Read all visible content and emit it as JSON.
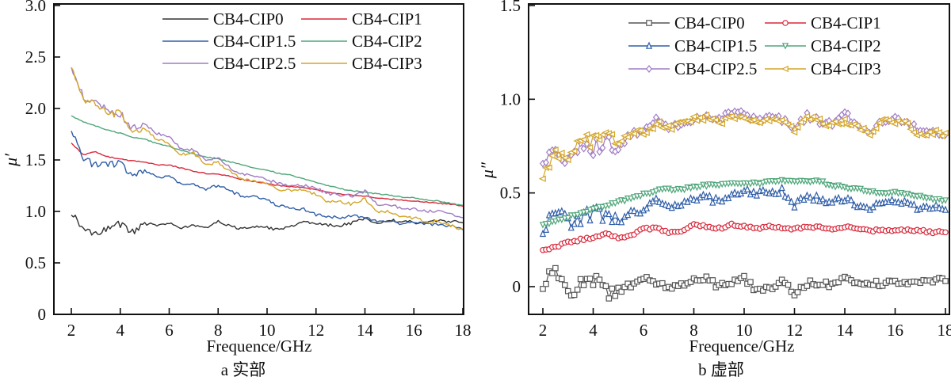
{
  "figure": {
    "panels_caption": [
      "a 实部",
      "b 虚部"
    ]
  },
  "chart_data": [
    {
      "id": "a",
      "type": "line",
      "title": "",
      "caption": "a 实部",
      "xlabel": "Frequence/GHz",
      "ylabel": "μ′",
      "xlim": [
        1.3,
        18.2
      ],
      "ylim": [
        0,
        3.0
      ],
      "xticks": [
        2,
        4,
        6,
        8,
        10,
        12,
        14,
        16,
        18
      ],
      "xtick_labels": [
        "2",
        "4",
        "6",
        "8",
        "10",
        "12",
        "14",
        "16",
        "18"
      ],
      "yticks": [
        0,
        0.5,
        1.0,
        1.5,
        2.0,
        2.5,
        3.0
      ],
      "ytick_labels": [
        "0",
        "0.5",
        "1.0",
        "1.5",
        "2.0",
        "2.5",
        "3.0"
      ],
      "grid": false,
      "legend_position": "top-right",
      "legend_columns": 2,
      "markers": false,
      "x": [
        2,
        2.5,
        3,
        3.5,
        4,
        4.5,
        5,
        5.5,
        6,
        6.5,
        7,
        7.5,
        8,
        8.5,
        9,
        9.5,
        10,
        10.5,
        11,
        11.5,
        12,
        12.5,
        13,
        13.5,
        14,
        14.5,
        15,
        15.5,
        16,
        16.5,
        17,
        17.5,
        18
      ],
      "series": [
        {
          "name": "CB4-CIP0",
          "color": "#333333",
          "values": [
            1.0,
            0.82,
            0.78,
            0.84,
            0.88,
            0.8,
            0.88,
            0.87,
            0.88,
            0.84,
            0.87,
            0.84,
            0.9,
            0.86,
            0.83,
            0.85,
            0.84,
            0.82,
            0.86,
            0.89,
            0.89,
            0.87,
            0.86,
            0.89,
            0.93,
            0.88,
            0.91,
            0.91,
            0.89,
            0.9,
            0.91,
            0.9,
            0.89
          ]
        },
        {
          "name": "CB4-CIP1",
          "color": "#d8283a",
          "values": [
            1.66,
            1.55,
            1.58,
            1.53,
            1.51,
            1.49,
            1.48,
            1.45,
            1.45,
            1.42,
            1.39,
            1.37,
            1.36,
            1.34,
            1.31,
            1.29,
            1.27,
            1.25,
            1.24,
            1.23,
            1.21,
            1.19,
            1.17,
            1.16,
            1.15,
            1.13,
            1.12,
            1.11,
            1.1,
            1.09,
            1.08,
            1.07,
            1.05
          ]
        },
        {
          "name": "CB4-CIP1.5",
          "color": "#2f5ea8",
          "values": [
            1.78,
            1.5,
            1.45,
            1.45,
            1.47,
            1.33,
            1.4,
            1.33,
            1.34,
            1.26,
            1.27,
            1.22,
            1.25,
            1.2,
            1.14,
            1.14,
            1.11,
            1.05,
            1.04,
            1.02,
            0.97,
            0.95,
            0.94,
            0.96,
            0.94,
            0.91,
            0.91,
            0.88,
            0.89,
            0.88,
            0.87,
            0.86,
            0.82
          ]
        },
        {
          "name": "CB4-CIP2",
          "color": "#4fa67a",
          "values": [
            1.93,
            1.87,
            1.83,
            1.79,
            1.76,
            1.72,
            1.7,
            1.66,
            1.63,
            1.59,
            1.56,
            1.53,
            1.51,
            1.48,
            1.45,
            1.42,
            1.4,
            1.37,
            1.35,
            1.32,
            1.28,
            1.25,
            1.22,
            1.2,
            1.19,
            1.17,
            1.16,
            1.14,
            1.13,
            1.11,
            1.1,
            1.08,
            1.06
          ]
        },
        {
          "name": "CB4-CIP2.5",
          "color": "#a07cc5",
          "values": [
            2.4,
            2.12,
            2.05,
            1.98,
            1.95,
            1.8,
            1.84,
            1.76,
            1.72,
            1.6,
            1.6,
            1.5,
            1.53,
            1.42,
            1.36,
            1.35,
            1.31,
            1.27,
            1.25,
            1.25,
            1.23,
            1.17,
            1.16,
            1.15,
            1.2,
            1.07,
            1.07,
            1.03,
            1.02,
            1.0,
            1.01,
            0.97,
            0.94
          ]
        },
        {
          "name": "CB4-CIP3",
          "color": "#d4a628",
          "values": [
            2.42,
            2.1,
            2.03,
            1.95,
            1.95,
            1.75,
            1.8,
            1.7,
            1.66,
            1.55,
            1.57,
            1.45,
            1.48,
            1.38,
            1.31,
            1.3,
            1.28,
            1.2,
            1.21,
            1.2,
            1.17,
            1.09,
            1.09,
            1.07,
            1.12,
            1.0,
            1.0,
            0.94,
            0.94,
            0.9,
            0.9,
            0.86,
            0.83
          ]
        }
      ]
    },
    {
      "id": "b",
      "type": "line",
      "title": "",
      "caption": "b 虚部",
      "xlabel": "Frequence/GHz",
      "ylabel": "μ″",
      "xlim": [
        1.3,
        18.1
      ],
      "ylim": [
        -0.15,
        1.5
      ],
      "xticks": [
        2,
        4,
        6,
        8,
        10,
        12,
        14,
        16,
        18
      ],
      "xtick_labels": [
        "2",
        "4",
        "6",
        "8",
        "10",
        "12",
        "14",
        "16",
        "18"
      ],
      "yticks": [
        0,
        0.5,
        1.0,
        1.5
      ],
      "ytick_labels": [
        "0",
        "0.5",
        "1.0",
        "1.5"
      ],
      "grid": false,
      "legend_position": "top-right",
      "legend_columns": 2,
      "markers": true,
      "x": [
        2,
        2.5,
        3,
        3.5,
        4,
        4.5,
        5,
        5.5,
        6,
        6.5,
        7,
        7.5,
        8,
        8.5,
        9,
        9.5,
        10,
        10.5,
        11,
        11.5,
        12,
        12.5,
        13,
        13.5,
        14,
        14.5,
        15,
        15.5,
        16,
        16.5,
        17,
        17.5,
        18
      ],
      "series": [
        {
          "name": "CB4-CIP0",
          "color": "#555555",
          "marker": "square",
          "values": [
            0.03,
            0.08,
            -0.05,
            0.02,
            0.05,
            -0.03,
            -0.02,
            0.01,
            0.04,
            0.02,
            0.0,
            0.01,
            0.03,
            0.05,
            0.0,
            0.02,
            0.04,
            -0.02,
            -0.01,
            0.02,
            -0.03,
            0.02,
            0.02,
            0.0,
            0.04,
            0.02,
            0.01,
            0.02,
            0.03,
            0.03,
            0.02,
            0.03,
            0.03
          ]
        },
        {
          "name": "CB4-CIP1",
          "color": "#d8283a",
          "marker": "circle",
          "values": [
            0.19,
            0.21,
            0.24,
            0.25,
            0.26,
            0.28,
            0.26,
            0.27,
            0.31,
            0.31,
            0.29,
            0.3,
            0.33,
            0.32,
            0.31,
            0.33,
            0.32,
            0.31,
            0.32,
            0.31,
            0.31,
            0.32,
            0.32,
            0.31,
            0.32,
            0.31,
            0.3,
            0.3,
            0.3,
            0.3,
            0.3,
            0.29,
            0.29
          ]
        },
        {
          "name": "CB4-CIP1.5",
          "color": "#2f5ea8",
          "marker": "triangle-up",
          "values": [
            0.28,
            0.4,
            0.33,
            0.35,
            0.4,
            0.37,
            0.34,
            0.4,
            0.4,
            0.46,
            0.43,
            0.45,
            0.46,
            0.48,
            0.45,
            0.48,
            0.51,
            0.49,
            0.51,
            0.51,
            0.44,
            0.48,
            0.47,
            0.45,
            0.47,
            0.44,
            0.42,
            0.45,
            0.45,
            0.44,
            0.42,
            0.42,
            0.41
          ]
        },
        {
          "name": "CB4-CIP2",
          "color": "#4fa67a",
          "marker": "triangle-down",
          "values": [
            0.33,
            0.35,
            0.37,
            0.39,
            0.41,
            0.43,
            0.45,
            0.47,
            0.49,
            0.51,
            0.52,
            0.52,
            0.53,
            0.54,
            0.54,
            0.55,
            0.55,
            0.55,
            0.56,
            0.57,
            0.56,
            0.56,
            0.56,
            0.54,
            0.53,
            0.52,
            0.51,
            0.5,
            0.5,
            0.49,
            0.48,
            0.47,
            0.46
          ]
        },
        {
          "name": "CB4-CIP2.5",
          "color": "#a07cc5",
          "marker": "diamond",
          "values": [
            0.66,
            0.77,
            0.65,
            0.76,
            0.74,
            0.77,
            0.72,
            0.82,
            0.82,
            0.89,
            0.85,
            0.87,
            0.9,
            0.92,
            0.89,
            0.94,
            0.93,
            0.88,
            0.91,
            0.89,
            0.85,
            0.91,
            0.88,
            0.87,
            0.92,
            0.87,
            0.83,
            0.88,
            0.89,
            0.88,
            0.83,
            0.82,
            0.81
          ]
        },
        {
          "name": "CB4-CIP3",
          "color": "#d4a628",
          "marker": "triangle-left",
          "values": [
            0.6,
            0.74,
            0.68,
            0.79,
            0.78,
            0.8,
            0.76,
            0.82,
            0.82,
            0.87,
            0.85,
            0.87,
            0.9,
            0.9,
            0.87,
            0.91,
            0.91,
            0.87,
            0.9,
            0.88,
            0.84,
            0.9,
            0.88,
            0.86,
            0.88,
            0.86,
            0.82,
            0.88,
            0.87,
            0.87,
            0.81,
            0.82,
            0.82
          ]
        }
      ]
    }
  ]
}
